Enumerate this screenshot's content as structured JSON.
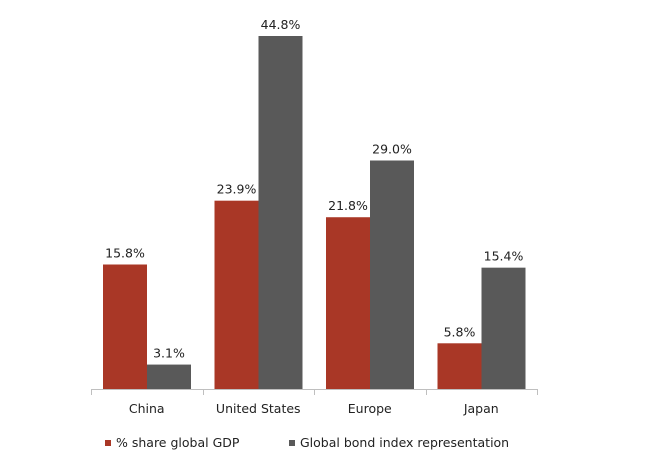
{
  "chart_data": {
    "type": "bar",
    "categories": [
      "China",
      "United States",
      "Europe",
      "Japan"
    ],
    "series": [
      {
        "name": "% share global GDP",
        "values": [
          15.8,
          23.9,
          21.8,
          5.8
        ],
        "color": "#a93726"
      },
      {
        "name": "Global bond index representation",
        "values": [
          3.1,
          44.8,
          29.0,
          15.4
        ],
        "color": "#595959"
      }
    ],
    "value_suffix": "%",
    "ylim": [
      0,
      44.8
    ],
    "grid": false,
    "legend_position": "bottom",
    "title": "",
    "xlabel": "",
    "ylabel": ""
  }
}
